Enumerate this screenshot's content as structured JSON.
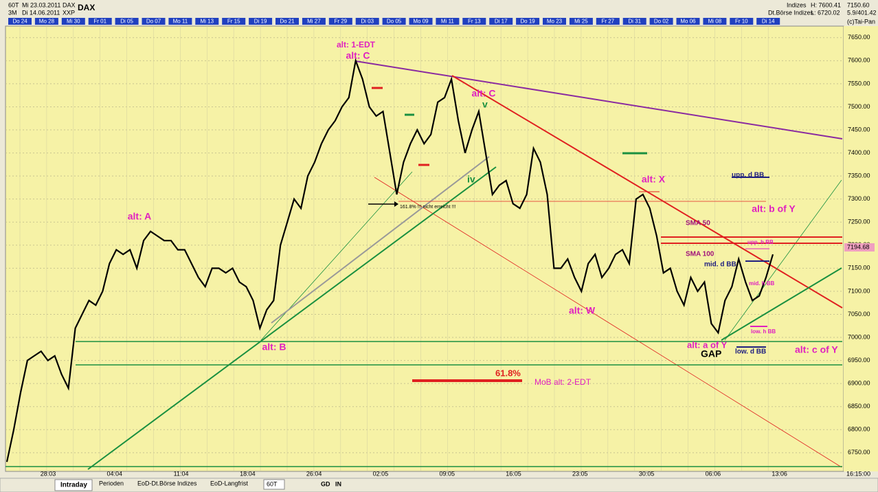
{
  "header": {
    "period": "60T",
    "start": "Mi 23.03.2011",
    "symbol": "DAX",
    "symbol2": "DAX",
    "range": "3M",
    "end": "Di 14.06.2011",
    "exchange": "XXP",
    "group": "Indizes",
    "market": "Dt.Börse Indizes",
    "high": "H: 7600.41",
    "low": "L: 6720.02",
    "last": "7150.60",
    "vol": "5.9/401.42",
    "brand": "(c)Tai-Pan"
  },
  "day_tabs": [
    "Do 24",
    "Mo 28",
    "Mi 30",
    "Fr 01",
    "Di 05",
    "Do 07",
    "Mo 11",
    "Mi 13",
    "Fr 15",
    "Di 19",
    "Do 21",
    "Mi 27",
    "Fr 29",
    "Di 03",
    "Do 05",
    "Mo 09",
    "Mi 11",
    "Fr 13",
    "Di 17",
    "Do 19",
    "Mo 23",
    "Mi 25",
    "Fr 27",
    "Di 31",
    "Do 02",
    "Mo 06",
    "Mi 08",
    "Fr 10",
    "Di 14"
  ],
  "annotations": {
    "edt1": "alt: 1-EDT",
    "c1": "alt: C",
    "c2": "alt: C",
    "v": "v",
    "iv": "iv",
    "a": "alt: A",
    "b": "alt: B",
    "w": "alt: W",
    "x": "alt: X",
    "bY": "alt: b of Y",
    "sma50": "SMA 50",
    "sma100": "SMA 100",
    "uppd": "upp. d BB",
    "upph": "upp. h BB",
    "midd": "mid. d BB",
    "midh": "mid. h BB",
    "lowh": "low. h BB",
    "aY": "alt: a of Y",
    "gap": "GAP",
    "lowd": "low. d BB",
    "cY": "alt: c of Y",
    "fib": "61.8%",
    "mob": "MoB alt: 2-EDT",
    "note": "161.8% !!! nicht erreicht !!!"
  },
  "price_label": "7194.68",
  "tabs": [
    "Intraday",
    "Perioden",
    "EoD-Dt.Börse Indizes",
    "EoD-Langfrist"
  ],
  "toolbar": {
    "period": "60T",
    "gd": "GD",
    "in": "IN"
  },
  "chart_data": {
    "type": "line",
    "color": "#000000",
    "grid": true,
    "x_labels": [
      "28:03",
      "04:04",
      "11:04",
      "18:04",
      "26:04",
      "02:05",
      "09:05",
      "16:05",
      "23:05",
      "30:05",
      "06:06",
      "13:06"
    ],
    "x_end_label": "16:15:00",
    "values": [
      6730,
      6800,
      6880,
      6950,
      6960,
      6970,
      6950,
      6960,
      6920,
      6890,
      7020,
      7050,
      7080,
      7070,
      7100,
      7160,
      7190,
      7180,
      7190,
      7150,
      7210,
      7230,
      7220,
      7210,
      7210,
      7190,
      7190,
      7160,
      7130,
      7110,
      7150,
      7150,
      7140,
      7150,
      7120,
      7110,
      7080,
      7020,
      7060,
      7080,
      7200,
      7250,
      7300,
      7280,
      7350,
      7380,
      7420,
      7450,
      7470,
      7500,
      7520,
      7600,
      7560,
      7500,
      7480,
      7490,
      7400,
      7310,
      7380,
      7420,
      7450,
      7420,
      7440,
      7510,
      7520,
      7560,
      7470,
      7400,
      7450,
      7490,
      7400,
      7310,
      7330,
      7340,
      7290,
      7280,
      7310,
      7410,
      7380,
      7310,
      7150,
      7150,
      7170,
      7130,
      7100,
      7160,
      7180,
      7130,
      7150,
      7180,
      7190,
      7160,
      7300,
      7310,
      7280,
      7220,
      7140,
      7150,
      7100,
      7070,
      7130,
      7100,
      7120,
      7030,
      7010,
      7080,
      7110,
      7170,
      7120,
      7080,
      7090,
      7130,
      7180
    ],
    "ylim": [
      6711,
      7675
    ],
    "yticks": [
      {
        "value": 6750,
        "label": "6750.00"
      },
      {
        "value": 6800,
        "label": "6800.00"
      },
      {
        "value": 6850,
        "label": "6850.00"
      },
      {
        "value": 6900,
        "label": "6900.00"
      },
      {
        "value": 6950,
        "label": "6950.00"
      },
      {
        "value": 7000,
        "label": "7000.00"
      },
      {
        "value": 7050,
        "label": "7050.00"
      },
      {
        "value": 7100,
        "label": "7100.00"
      },
      {
        "value": 7150,
        "label": "7150.00"
      },
      {
        "value": 7200,
        "label": "7200.00"
      },
      {
        "value": 7250,
        "label": "7250.00"
      },
      {
        "value": 7300,
        "label": "7300.00"
      },
      {
        "value": 7350,
        "label": "7350.00"
      },
      {
        "value": 7400,
        "label": "7400.00"
      },
      {
        "value": 7450,
        "label": "7450.00"
      },
      {
        "value": 7500,
        "label": "7500.00"
      },
      {
        "value": 7550,
        "label": "7550.00"
      },
      {
        "value": 7600,
        "label": "7600.00"
      },
      {
        "value": 7650,
        "label": "7650.00"
      }
    ]
  }
}
